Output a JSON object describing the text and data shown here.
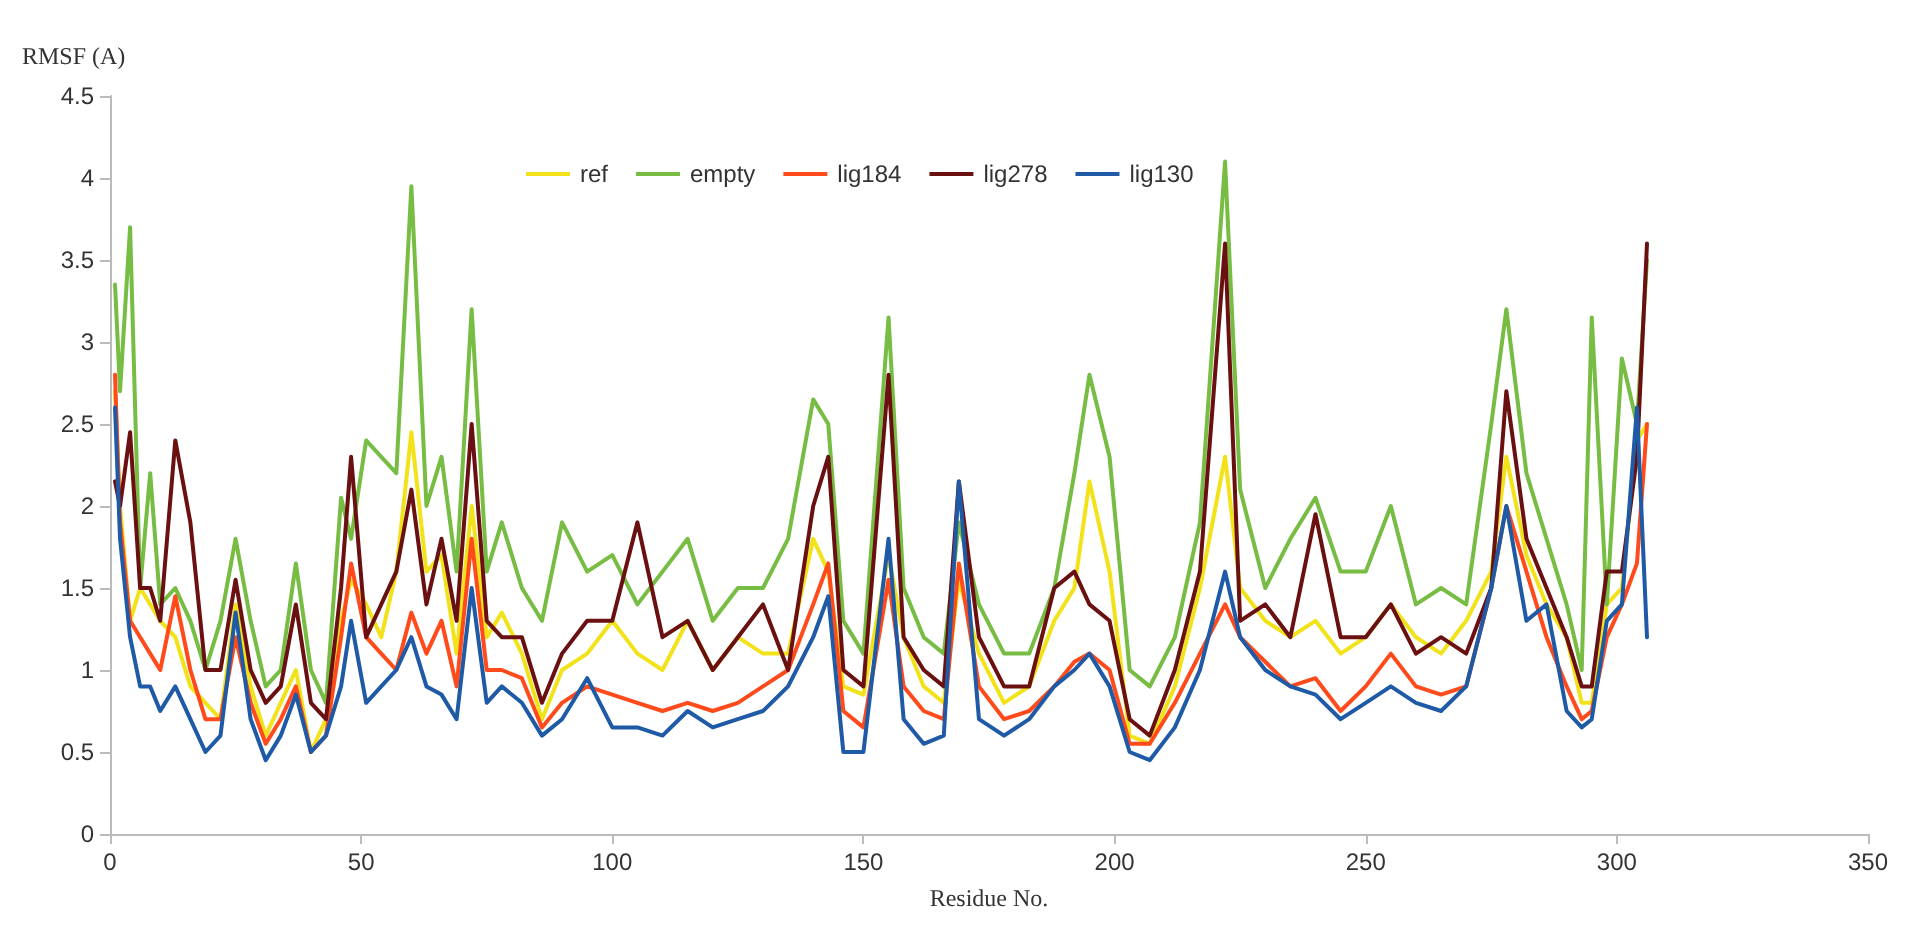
{
  "chart_data": {
    "type": "line",
    "ylabel": "RMSF (A)",
    "xlabel": "Residue No.",
    "x": [
      1,
      2,
      4,
      6,
      8,
      10,
      13,
      16,
      19,
      22,
      25,
      28,
      31,
      34,
      37,
      40,
      43,
      46,
      48,
      51,
      54,
      57,
      60,
      63,
      66,
      69,
      72,
      75,
      78,
      82,
      86,
      90,
      95,
      100,
      105,
      110,
      115,
      120,
      125,
      130,
      135,
      140,
      143,
      146,
      150,
      155,
      158,
      162,
      166,
      169,
      173,
      178,
      183,
      188,
      192,
      195,
      199,
      203,
      207,
      212,
      217,
      222,
      225,
      230,
      235,
      240,
      245,
      250,
      255,
      260,
      265,
      270,
      275,
      278,
      282,
      286,
      290,
      293,
      295,
      298,
      301,
      304,
      306
    ],
    "series": [
      {
        "name": "ref",
        "color": "#f2e21a",
        "values": [
          2.7,
          2.0,
          1.3,
          1.5,
          1.4,
          1.3,
          1.2,
          0.9,
          0.8,
          0.7,
          1.4,
          0.9,
          0.6,
          0.8,
          1.0,
          0.5,
          0.7,
          1.3,
          1.55,
          1.4,
          1.2,
          1.6,
          2.45,
          1.6,
          1.7,
          1.1,
          2.0,
          1.2,
          1.35,
          1.1,
          0.7,
          1.0,
          1.1,
          1.3,
          1.1,
          1.0,
          1.3,
          1.0,
          1.2,
          1.1,
          1.1,
          1.8,
          1.6,
          0.9,
          0.85,
          1.7,
          1.2,
          0.9,
          0.8,
          1.55,
          1.1,
          0.8,
          0.9,
          1.3,
          1.5,
          2.15,
          1.6,
          0.6,
          0.55,
          0.9,
          1.5,
          2.3,
          1.5,
          1.3,
          1.2,
          1.3,
          1.1,
          1.2,
          1.4,
          1.2,
          1.1,
          1.3,
          1.6,
          2.3,
          1.7,
          1.4,
          1.2,
          0.8,
          0.8,
          1.4,
          1.5,
          2.4,
          2.5
        ]
      },
      {
        "name": "empty",
        "color": "#77bc43",
        "values": [
          3.35,
          2.7,
          3.7,
          1.5,
          2.2,
          1.4,
          1.5,
          1.3,
          1.0,
          1.3,
          1.8,
          1.3,
          0.9,
          1.0,
          1.65,
          1.0,
          0.8,
          2.05,
          1.8,
          2.4,
          2.3,
          2.2,
          3.95,
          2.0,
          2.3,
          1.6,
          3.2,
          1.6,
          1.9,
          1.5,
          1.3,
          1.9,
          1.6,
          1.7,
          1.4,
          1.6,
          1.8,
          1.3,
          1.5,
          1.5,
          1.8,
          2.65,
          2.5,
          1.3,
          1.1,
          3.15,
          1.5,
          1.2,
          1.1,
          1.9,
          1.4,
          1.1,
          1.1,
          1.5,
          2.2,
          2.8,
          2.3,
          1.0,
          0.9,
          1.2,
          1.9,
          4.1,
          2.1,
          1.5,
          1.8,
          2.05,
          1.6,
          1.6,
          2.0,
          1.4,
          1.5,
          1.4,
          2.5,
          3.2,
          2.2,
          1.8,
          1.4,
          1.0,
          3.15,
          1.4,
          2.9,
          2.5,
          3.5
        ]
      },
      {
        "name": "lig184",
        "color": "#ff4a1c",
        "values": [
          2.8,
          1.9,
          1.3,
          1.2,
          1.1,
          1.0,
          1.45,
          1.0,
          0.7,
          0.7,
          1.2,
          0.8,
          0.55,
          0.7,
          0.9,
          0.5,
          0.6,
          1.2,
          1.65,
          1.2,
          1.1,
          1.0,
          1.35,
          1.1,
          1.3,
          0.9,
          1.8,
          1.0,
          1.0,
          0.95,
          0.65,
          0.8,
          0.9,
          0.85,
          0.8,
          0.75,
          0.8,
          0.75,
          0.8,
          0.9,
          1.0,
          1.4,
          1.65,
          0.75,
          0.65,
          1.55,
          0.9,
          0.75,
          0.7,
          1.65,
          0.9,
          0.7,
          0.75,
          0.9,
          1.05,
          1.1,
          1.0,
          0.55,
          0.55,
          0.8,
          1.1,
          1.4,
          1.2,
          1.05,
          0.9,
          0.95,
          0.75,
          0.9,
          1.1,
          0.9,
          0.85,
          0.9,
          1.5,
          2.0,
          1.6,
          1.2,
          0.9,
          0.7,
          0.75,
          1.2,
          1.4,
          1.65,
          2.5
        ]
      },
      {
        "name": "lig278",
        "color": "#6b1010",
        "values": [
          2.15,
          2.0,
          2.45,
          1.5,
          1.5,
          1.3,
          2.4,
          1.9,
          1.0,
          1.0,
          1.55,
          1.0,
          0.8,
          0.9,
          1.4,
          0.8,
          0.7,
          1.5,
          2.3,
          1.2,
          1.4,
          1.6,
          2.1,
          1.4,
          1.8,
          1.3,
          2.5,
          1.3,
          1.2,
          1.2,
          0.8,
          1.1,
          1.3,
          1.3,
          1.9,
          1.2,
          1.3,
          1.0,
          1.2,
          1.4,
          1.0,
          2.0,
          2.3,
          1.0,
          0.9,
          2.8,
          1.2,
          1.0,
          0.9,
          2.15,
          1.2,
          0.9,
          0.9,
          1.5,
          1.6,
          1.4,
          1.3,
          0.7,
          0.6,
          1.0,
          1.6,
          3.6,
          1.3,
          1.4,
          1.2,
          1.95,
          1.2,
          1.2,
          1.4,
          1.1,
          1.2,
          1.1,
          1.5,
          2.7,
          1.8,
          1.5,
          1.2,
          0.9,
          0.9,
          1.6,
          1.6,
          2.3,
          3.6
        ]
      },
      {
        "name": "lig130",
        "color": "#1f5aa6",
        "values": [
          2.6,
          1.8,
          1.2,
          0.9,
          0.9,
          0.75,
          0.9,
          0.7,
          0.5,
          0.6,
          1.35,
          0.7,
          0.45,
          0.6,
          0.85,
          0.5,
          0.6,
          0.9,
          1.3,
          0.8,
          0.9,
          1.0,
          1.2,
          0.9,
          0.85,
          0.7,
          1.5,
          0.8,
          0.9,
          0.8,
          0.6,
          0.7,
          0.95,
          0.65,
          0.65,
          0.6,
          0.75,
          0.65,
          0.7,
          0.75,
          0.9,
          1.2,
          1.45,
          0.5,
          0.5,
          1.8,
          0.7,
          0.55,
          0.6,
          2.15,
          0.7,
          0.6,
          0.7,
          0.9,
          1.0,
          1.1,
          0.9,
          0.5,
          0.45,
          0.65,
          1.0,
          1.6,
          1.2,
          1.0,
          0.9,
          0.85,
          0.7,
          0.8,
          0.9,
          0.8,
          0.75,
          0.9,
          1.5,
          2.0,
          1.3,
          1.4,
          0.75,
          0.65,
          0.7,
          1.3,
          1.4,
          2.6,
          1.2
        ]
      }
    ],
    "xlim": [
      0,
      350
    ],
    "xticks": [
      0,
      50,
      100,
      150,
      200,
      250,
      300,
      350
    ],
    "ylim": [
      0,
      4.5
    ],
    "yticks": [
      0,
      0.5,
      1,
      1.5,
      2,
      2.5,
      3,
      3.5,
      4,
      4.5
    ],
    "legend": "top",
    "marker": "none",
    "line_style": "solid"
  }
}
